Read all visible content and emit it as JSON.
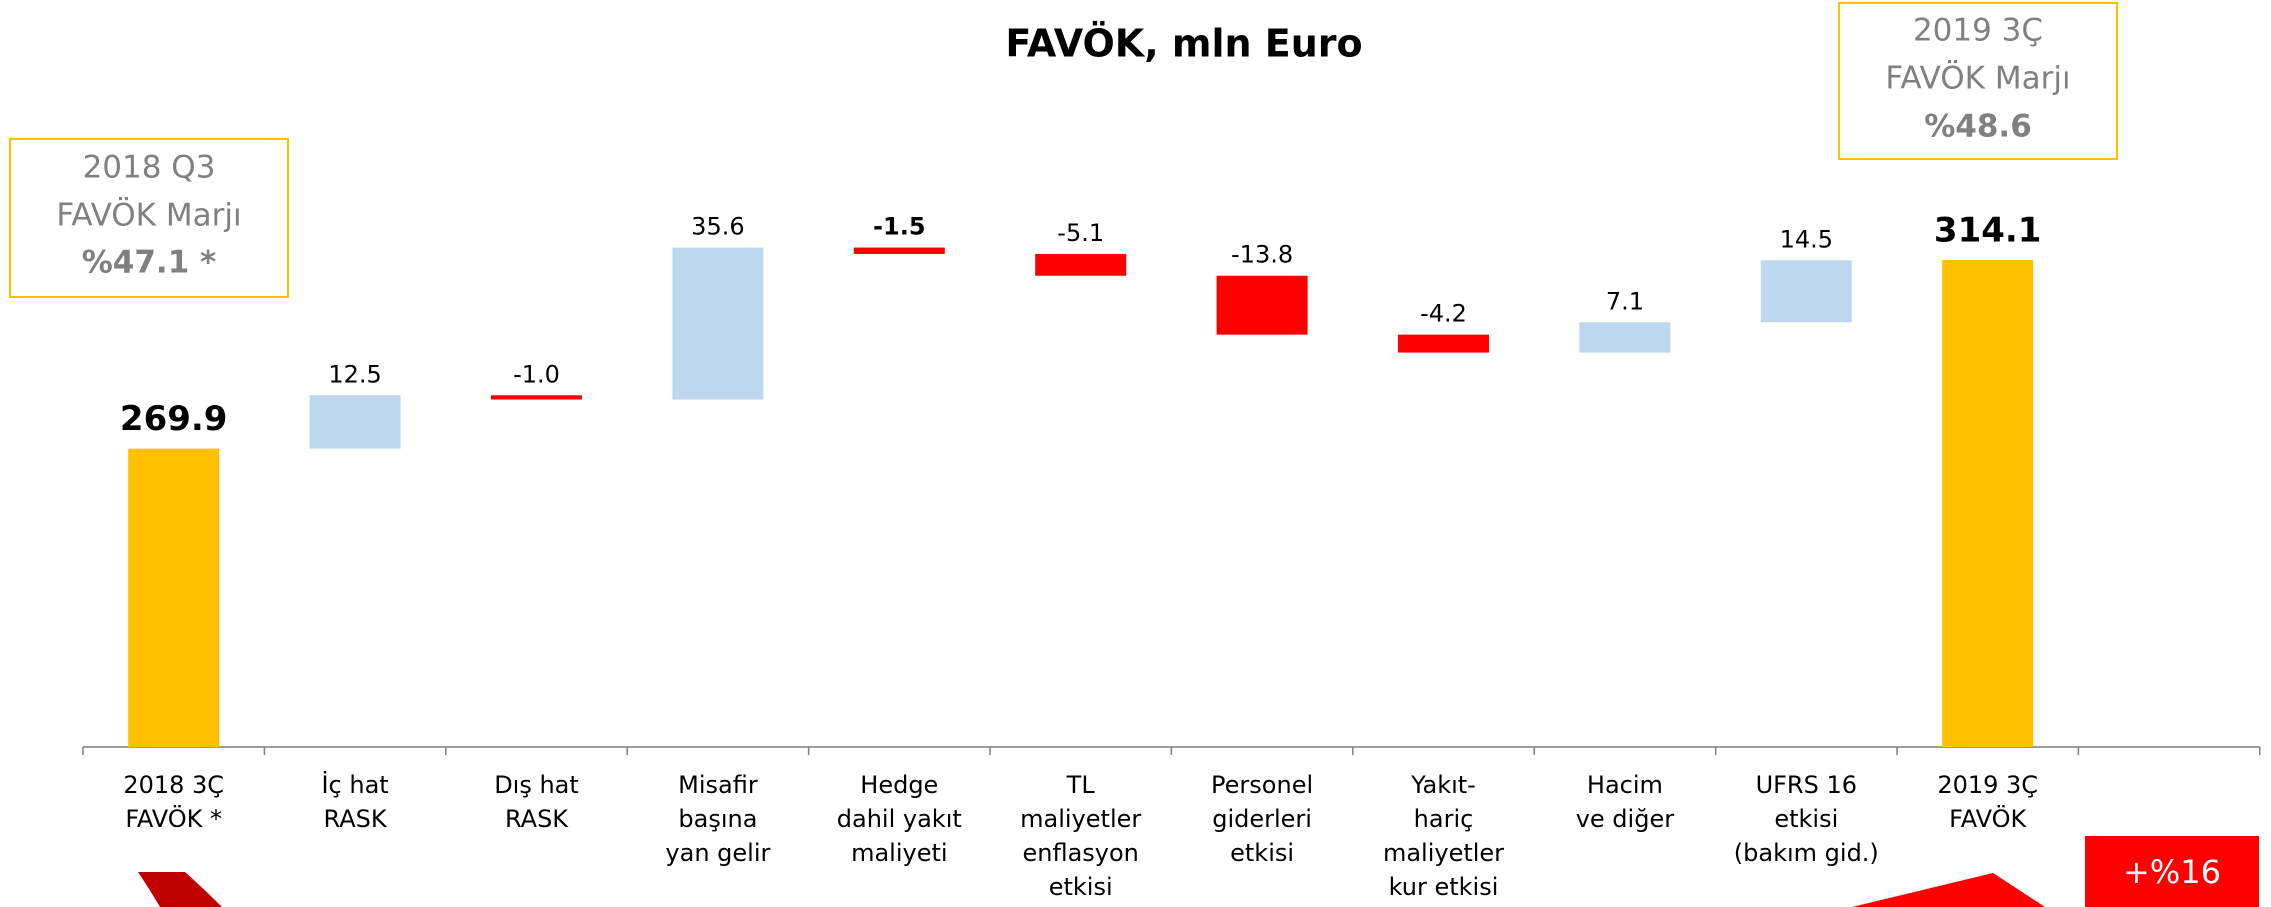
{
  "chart_data": {
    "type": "waterfall",
    "title": "FAVÖK, mln Euro",
    "categories": [
      [
        "2018 3Ç",
        "FAVÖK *"
      ],
      [
        "İç hat",
        "RASK"
      ],
      [
        "Dış hat",
        "RASK"
      ],
      [
        "Misafir",
        "başına",
        "yan gelir"
      ],
      [
        "Hedge",
        "dahil yakıt",
        "maliyeti"
      ],
      [
        "TL",
        "maliyetler",
        "enflasyon",
        "etkisi"
      ],
      [
        "Personel",
        "giderleri",
        "etkisi"
      ],
      [
        "Yakıt-",
        "hariç",
        "maliyetler",
        "kur etkisi"
      ],
      [
        "Hacim",
        "ve diğer"
      ],
      [
        "UFRS 16",
        "etkisi",
        "(bakım gid.)"
      ],
      [
        "2019 3Ç",
        "FAVÖK"
      ]
    ],
    "values": [
      269.9,
      12.5,
      -1.0,
      35.6,
      -1.5,
      -5.1,
      -13.8,
      -4.2,
      7.1,
      14.5,
      314.1
    ],
    "value_labels": [
      "269.9",
      "12.5",
      "-1.0",
      "35.6",
      "-1.5",
      "-5.1",
      "-13.8",
      "-4.2",
      "7.1",
      "14.5",
      "314.1"
    ],
    "colors": {
      "total": "#FFC000",
      "increase": "#BDD7EE",
      "decrease": "#FF0000"
    },
    "ylim": [
      200,
      360
    ],
    "annotations": [
      {
        "lines": [
          "2018 Q3",
          "FAVÖK  Marjı",
          "%47.1 *"
        ]
      },
      {
        "lines": [
          "2019 3Ç",
          "FAVÖK  Marjı",
          "%48.6"
        ]
      },
      {
        "lines": [
          "+%16"
        ]
      }
    ]
  }
}
